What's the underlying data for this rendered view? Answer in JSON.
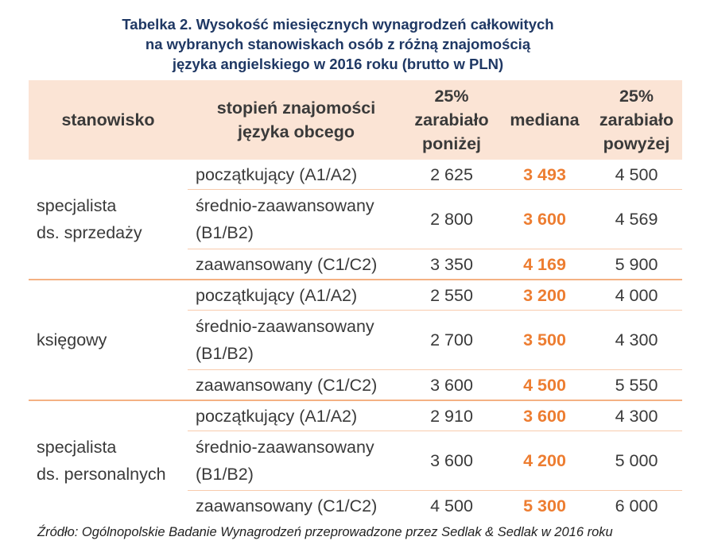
{
  "title": {
    "line1": "Tabelka 2. Wysokość miesięcznych wynagrodzeń całkowitych",
    "line2": "na wybranych stanowiskach osób z różną znajomością",
    "line3": "języka angielskiego w 2016 roku (brutto w PLN)"
  },
  "headers": {
    "position": "stanowisko",
    "level_l1": "stopień znajomości",
    "level_l2": "języka obcego",
    "low_l1": "25%",
    "low_l2": "zarabiało",
    "low_l3": "poniżej",
    "median": "mediana",
    "high_l1": "25%",
    "high_l2": "zarabiało",
    "high_l3": "powyżej"
  },
  "groups": [
    {
      "position_l1": "specjalista",
      "position_l2": "ds. sprzedaży",
      "rows": [
        {
          "level_l1": "początkujący (A1/A2)",
          "level_l2": "",
          "low": "2 625",
          "median": "3 493",
          "high": "4 500"
        },
        {
          "level_l1": "średnio-zaawansowany",
          "level_l2": "(B1/B2)",
          "low": "2 800",
          "median": "3 600",
          "high": "4 569"
        },
        {
          "level_l1": "zaawansowany (C1/C2)",
          "level_l2": "",
          "low": "3 350",
          "median": "4 169",
          "high": "5 900"
        }
      ]
    },
    {
      "position_l1": "księgowy",
      "position_l2": "",
      "rows": [
        {
          "level_l1": "początkujący (A1/A2)",
          "level_l2": "",
          "low": "2 550",
          "median": "3 200",
          "high": "4 000"
        },
        {
          "level_l1": "średnio-zaawansowany",
          "level_l2": "(B1/B2)",
          "low": "2 700",
          "median": "3 500",
          "high": "4 300"
        },
        {
          "level_l1": "zaawansowany (C1/C2)",
          "level_l2": "",
          "low": "3 600",
          "median": "4 500",
          "high": "5 550"
        }
      ]
    },
    {
      "position_l1": "specjalista",
      "position_l2": "ds. personalnych",
      "rows": [
        {
          "level_l1": "początkujący (A1/A2)",
          "level_l2": "",
          "low": "2 910",
          "median": "3 600",
          "high": "4 300"
        },
        {
          "level_l1": "średnio-zaawansowany",
          "level_l2": "(B1/B2)",
          "low": "3 600",
          "median": "4 200",
          "high": "5 000"
        },
        {
          "level_l1": "zaawansowany (C1/C2)",
          "level_l2": "",
          "low": "4 500",
          "median": "5 300",
          "high": "6 000"
        }
      ]
    }
  ],
  "source": "Źródło: Ogólnopolskie Badanie Wynagrodzeń przeprowadzone przez Sedlak & Sedlak w 2016 roku",
  "colors": {
    "title": "#1f3864",
    "header_bg": "#fbe4d5",
    "median_accent": "#ed7d31",
    "row_divider": "#f8cbad",
    "group_divider": "#f4b183"
  }
}
